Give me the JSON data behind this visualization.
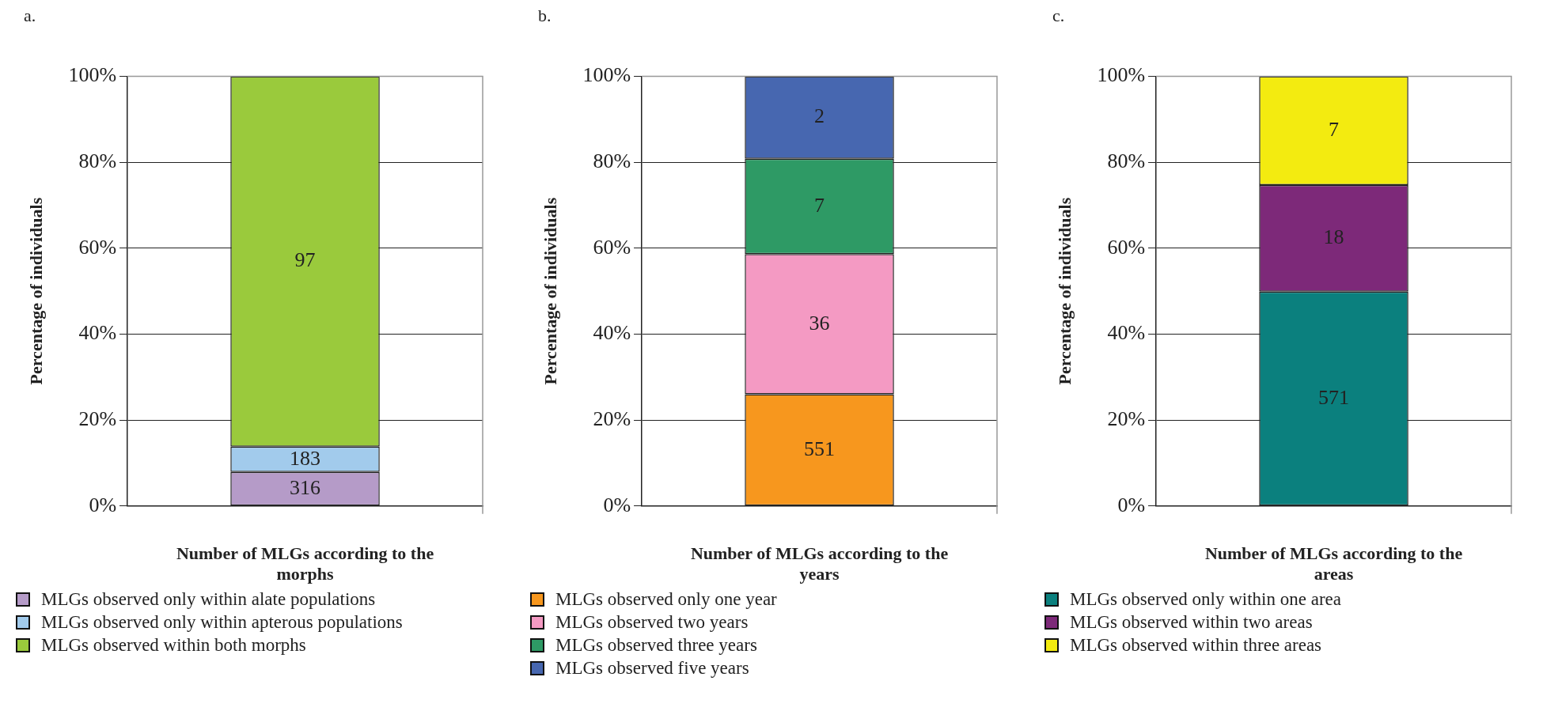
{
  "chart_data": [
    {
      "type": "bar",
      "title": "a.",
      "xlabel": "Number of MLGs according to the morphs",
      "ylabel": "Percentage of individuals",
      "stacked": true,
      "categories": [
        null
      ],
      "ylim": [
        0,
        100
      ],
      "yticks": [
        {
          "value": 0,
          "label": "0%"
        },
        {
          "value": 20,
          "label": "20%"
        },
        {
          "value": 40,
          "label": "40%"
        },
        {
          "value": 60,
          "label": "60%"
        },
        {
          "value": 80,
          "label": "80%"
        },
        {
          "value": 100,
          "label": "100%"
        }
      ],
      "grid": "y",
      "legend": "bottom",
      "series": [
        {
          "name": "MLGs observed only within alate populations",
          "color": "#b59bc8",
          "values": [
            7.9
          ]
        },
        {
          "name": "MLGs observed only within apterous populations",
          "color": "#a2cbec",
          "values": [
            5.9
          ]
        },
        {
          "name": "MLGs observed within both morphs",
          "color": "#9aca3c",
          "values": [
            86.2
          ]
        }
      ],
      "annotations": [
        "316",
        "183",
        "97"
      ]
    },
    {
      "type": "bar",
      "title": "b.",
      "xlabel": "Number of MLGs according to the years",
      "ylabel": "Percentage of individuals",
      "stacked": true,
      "categories": [
        null
      ],
      "ylim": [
        0,
        100
      ],
      "yticks": [
        {
          "value": 0,
          "label": "0%"
        },
        {
          "value": 20,
          "label": "20%"
        },
        {
          "value": 40,
          "label": "40%"
        },
        {
          "value": 60,
          "label": "60%"
        },
        {
          "value": 80,
          "label": "80%"
        },
        {
          "value": 100,
          "label": "100%"
        }
      ],
      "grid": "y",
      "legend": "bottom",
      "series": [
        {
          "name": "MLGs observed only one year",
          "color": "#f7971e",
          "values": [
            26.0
          ]
        },
        {
          "name": "MLGs observed two years",
          "color": "#f49ac3",
          "values": [
            32.6
          ]
        },
        {
          "name": "MLGs observed three years",
          "color": "#2e9a65",
          "values": [
            22.2
          ]
        },
        {
          "name": "MLGs observed five years",
          "color": "#4767b0",
          "values": [
            19.2
          ]
        }
      ],
      "annotations": [
        "551",
        "36",
        "7",
        "2"
      ]
    },
    {
      "type": "bar",
      "title": "c.",
      "xlabel": "Number of MLGs according to the areas",
      "ylabel": "Percentage of individuals",
      "stacked": true,
      "categories": [
        null
      ],
      "ylim": [
        0,
        100
      ],
      "yticks": [
        {
          "value": 0,
          "label": "0%"
        },
        {
          "value": 20,
          "label": "20%"
        },
        {
          "value": 40,
          "label": "40%"
        },
        {
          "value": 60,
          "label": "60%"
        },
        {
          "value": 80,
          "label": "80%"
        },
        {
          "value": 100,
          "label": "100%"
        }
      ],
      "grid": "y",
      "legend": "bottom",
      "series": [
        {
          "name": "MLGs observed only within one area",
          "color": "#0b807e",
          "values": [
            49.9
          ]
        },
        {
          "name": "MLGs observed within two areas",
          "color": "#7d2979",
          "values": [
            24.8
          ]
        },
        {
          "name": "MLGs observed within three areas",
          "color": "#f3eb10",
          "values": [
            25.3
          ]
        }
      ],
      "annotations": [
        "571",
        "18",
        "7"
      ]
    }
  ]
}
